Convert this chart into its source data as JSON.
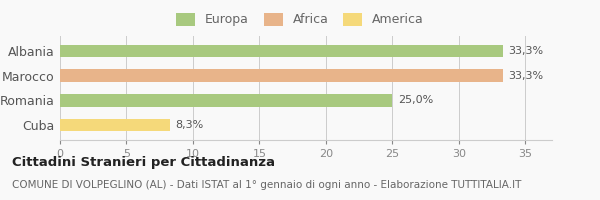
{
  "categories": [
    "Albania",
    "Marocco",
    "Romania",
    "Cuba"
  ],
  "values": [
    33.3,
    33.3,
    25.0,
    8.3
  ],
  "labels": [
    "33,3%",
    "33,3%",
    "25,0%",
    "8,3%"
  ],
  "colors": [
    "#a8c97f",
    "#e8b48a",
    "#a8c97f",
    "#f5d97a"
  ],
  "legend": [
    {
      "label": "Europa",
      "color": "#a8c97f"
    },
    {
      "label": "Africa",
      "color": "#e8b48a"
    },
    {
      "label": "America",
      "color": "#f5d97a"
    }
  ],
  "xlim": [
    0,
    37
  ],
  "xticks": [
    0,
    5,
    10,
    15,
    20,
    25,
    30,
    35
  ],
  "title": "Cittadini Stranieri per Cittadinanza",
  "subtitle": "COMUNE DI VOLPEGLINO (AL) - Dati ISTAT al 1° gennaio di ogni anno - Elaborazione TUTTITALIA.IT",
  "bg_color": "#f9f9f9",
  "bar_height": 0.5
}
